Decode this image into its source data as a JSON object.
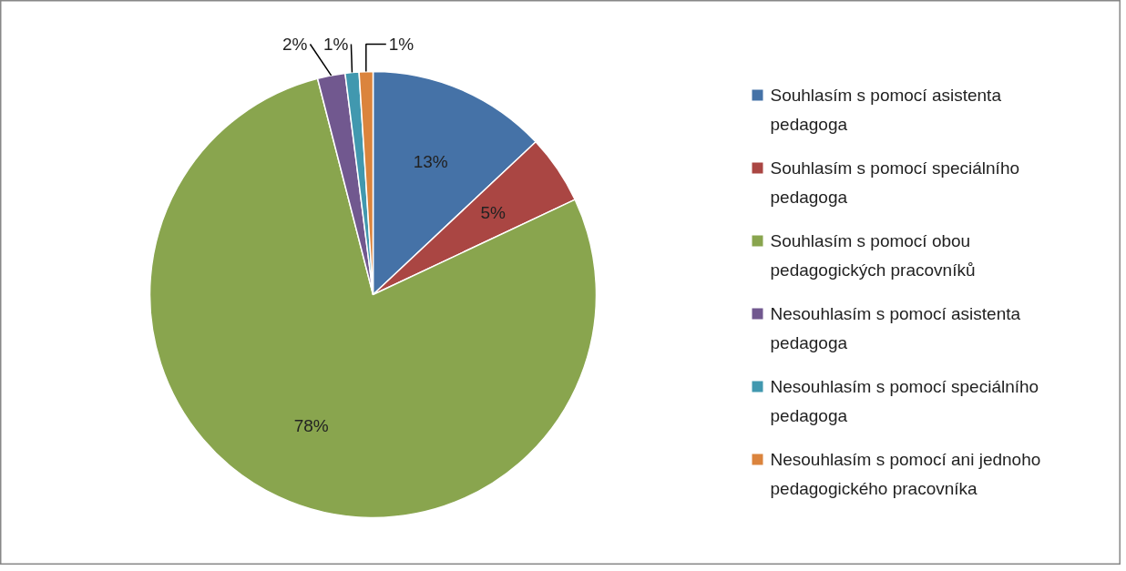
{
  "chart_data": {
    "type": "pie",
    "categories": [
      "Souhlasím s pomocí asistenta pedagoga",
      "Souhlasím s pomocí speciálního pedagoga",
      "Souhlasím s pomocí obou pedagogických pracovníků",
      "Nesouhlasím s pomocí asistenta pedagoga",
      "Nesouhlasím s pomocí speciálního pedagoga",
      "Nesouhlasím s pomocí ani jednoho pedagogického pracovníka"
    ],
    "values": [
      13,
      5,
      78,
      2,
      1,
      1
    ],
    "colors": [
      "#4572a7",
      "#aa4643",
      "#89a54e",
      "#71588f",
      "#4198af",
      "#db843d"
    ],
    "value_labels": [
      "13%",
      "5%",
      "78%",
      "2%",
      "1%",
      "1%"
    ],
    "legend": "right"
  }
}
